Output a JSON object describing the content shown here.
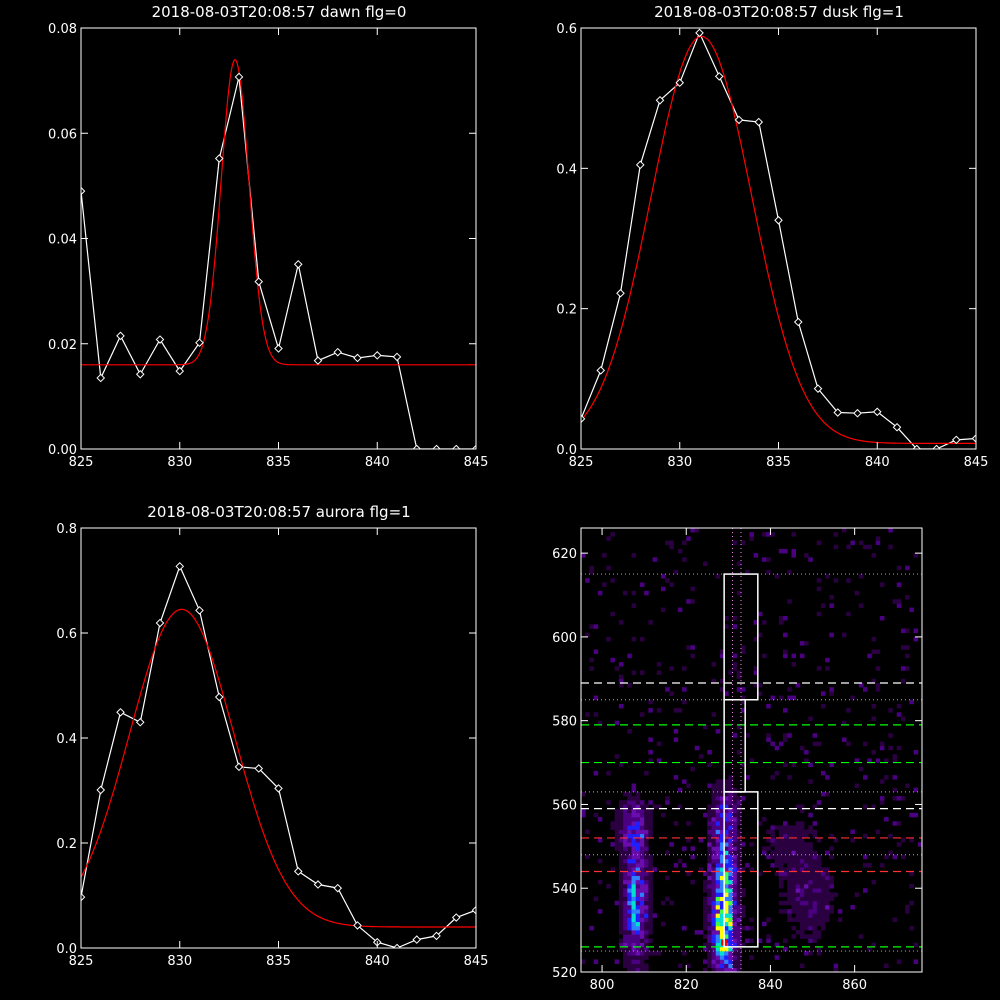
{
  "chart_data": [
    {
      "type": "line",
      "title": "2018-08-03T20:08:57 dawn flg=0",
      "xlim": [
        825,
        845
      ],
      "ylim": [
        0,
        0.08
      ],
      "xticks": [
        825,
        830,
        835,
        840,
        845
      ],
      "xtick_labels": [
        "825",
        "830",
        "835",
        "840",
        "845"
      ],
      "yticks": [
        0,
        0.02,
        0.04,
        0.06,
        0.08
      ],
      "ytick_labels": [
        "0.00",
        "0.02",
        "0.04",
        "0.06",
        "0.08"
      ],
      "data_color": "#ffffff",
      "fit_color": "#ff0000",
      "x": [
        825,
        826,
        827,
        828,
        829,
        830,
        831,
        832,
        833,
        834,
        835,
        836,
        837,
        838,
        839,
        840,
        841,
        842,
        843,
        844,
        845
      ],
      "y": [
        0.049,
        0.0135,
        0.0215,
        0.0142,
        0.0208,
        0.0148,
        0.0202,
        0.0552,
        0.0707,
        0.0318,
        0.0191,
        0.0351,
        0.0168,
        0.0184,
        0.0173,
        0.0178,
        0.0175,
        0,
        0,
        0,
        0
      ],
      "fit": {
        "center": 832.8,
        "sigma": 0.7,
        "amplitude": 0.058,
        "baseline": 0.016
      }
    },
    {
      "type": "line",
      "title": "2018-08-03T20:08:57 dusk flg=1",
      "xlim": [
        825,
        845
      ],
      "ylim": [
        0,
        0.6
      ],
      "xticks": [
        825,
        830,
        835,
        840,
        845
      ],
      "xtick_labels": [
        "825",
        "830",
        "835",
        "840",
        "845"
      ],
      "yticks": [
        0,
        0.2,
        0.4,
        0.6
      ],
      "ytick_labels": [
        "0.0",
        "0.2",
        "0.4",
        "0.6"
      ],
      "data_color": "#ffffff",
      "fit_color": "#ff0000",
      "x": [
        825,
        826,
        827,
        828,
        829,
        830,
        831,
        832,
        833,
        834,
        835,
        836,
        837,
        838,
        839,
        840,
        841,
        842,
        843,
        844,
        845
      ],
      "y": [
        0.043,
        0.112,
        0.222,
        0.405,
        0.497,
        0.522,
        0.593,
        0.531,
        0.469,
        0.466,
        0.326,
        0.181,
        0.086,
        0.052,
        0.051,
        0.053,
        0.031,
        0.0,
        0.0,
        0.013,
        0.015
      ],
      "fit": {
        "center": 831.1,
        "sigma": 2.55,
        "amplitude": 0.58,
        "baseline": 0.008
      }
    },
    {
      "type": "line",
      "title": "2018-08-03T20:08:57 aurora flg=1",
      "xlim": [
        825,
        845
      ],
      "ylim": [
        0,
        0.8
      ],
      "xticks": [
        825,
        830,
        835,
        840,
        845
      ],
      "xtick_labels": [
        "825",
        "830",
        "835",
        "840",
        "845"
      ],
      "yticks": [
        0,
        0.2,
        0.4,
        0.6,
        0.8
      ],
      "ytick_labels": [
        "0.0",
        "0.2",
        "0.4",
        "0.6",
        "0.8"
      ],
      "data_color": "#ffffff",
      "fit_color": "#ff0000",
      "x": [
        825,
        826,
        827,
        828,
        829,
        830,
        831,
        832,
        833,
        834,
        835,
        836,
        837,
        838,
        839,
        840,
        841,
        842,
        843,
        844,
        845
      ],
      "y": [
        0.097,
        0.301,
        0.449,
        0.43,
        0.619,
        0.727,
        0.643,
        0.478,
        0.345,
        0.342,
        0.304,
        0.146,
        0.121,
        0.114,
        0.043,
        0.011,
        0.0,
        0.016,
        0.023,
        0.058,
        0.072
      ],
      "fit": {
        "center": 830.1,
        "sigma": 2.65,
        "amplitude": 0.605,
        "baseline": 0.04
      }
    },
    {
      "type": "heatmap",
      "title": "",
      "xlim": [
        795,
        876
      ],
      "ylim": [
        520,
        626
      ],
      "xticks": [
        800,
        820,
        840,
        860
      ],
      "xtick_labels": [
        "800",
        "820",
        "840",
        "860"
      ],
      "yticks": [
        520,
        540,
        560,
        580,
        600,
        620
      ],
      "ytick_labels": [
        "520",
        "540",
        "560",
        "580",
        "600",
        "620"
      ],
      "colormap": [
        "#000000",
        "#2a0040",
        "#4b0082",
        "#6a0dad",
        "#1f1fff",
        "#2f7fff",
        "#00e0d0",
        "#40ff40",
        "#ffff00",
        "#ff0000"
      ],
      "sources": [
        {
          "x": 808,
          "y": 537,
          "sx": 2.0,
          "sy": 10,
          "amp": 0.55
        },
        {
          "x": 807,
          "y": 555,
          "sx": 2.5,
          "sy": 4,
          "amp": 0.3
        },
        {
          "x": 829,
          "y": 530,
          "sx": 2.0,
          "sy": 7,
          "amp": 0.9
        },
        {
          "x": 829,
          "y": 546,
          "sx": 2.0,
          "sy": 8,
          "amp": 0.5
        },
        {
          "x": 829,
          "y": 559,
          "sx": 2.0,
          "sy": 4,
          "amp": 0.25
        },
        {
          "x": 849,
          "y": 537,
          "sx": 4.0,
          "sy": 6,
          "amp": 0.18
        },
        {
          "x": 845,
          "y": 550,
          "sx": 5.0,
          "sy": 5,
          "amp": 0.12
        }
      ],
      "peak": {
        "x": 829,
        "y": 527
      },
      "boxes": [
        {
          "x0": 829,
          "x1": 837,
          "y0": 585,
          "y1": 615
        },
        {
          "x0": 829,
          "x1": 834,
          "y0": 563,
          "y1": 585
        },
        {
          "x0": 829,
          "x1": 837,
          "y0": 526,
          "y1": 563
        }
      ],
      "vertical_dotted": [
        831,
        833
      ],
      "hlines": [
        {
          "y": 615,
          "style": "dotted",
          "color": "#ff40ff"
        },
        {
          "y": 589,
          "style": "dashed",
          "color": "#ffffff"
        },
        {
          "y": 585,
          "style": "dotted",
          "color": "#ff40ff"
        },
        {
          "y": 579,
          "style": "dashed",
          "color": "#00ff00"
        },
        {
          "y": 570,
          "style": "dashed",
          "color": "#00ff00"
        },
        {
          "y": 563,
          "style": "dotted",
          "color": "#ff40ff"
        },
        {
          "y": 559,
          "style": "dashed",
          "color": "#ffffff"
        },
        {
          "y": 552,
          "style": "dashed",
          "color": "#ff3030"
        },
        {
          "y": 548,
          "style": "dotted",
          "color": "#ff40ff"
        },
        {
          "y": 544,
          "style": "dashed",
          "color": "#ff3030"
        },
        {
          "y": 526,
          "style": "dashed",
          "color": "#00ff00"
        },
        {
          "y": 525,
          "style": "dotted",
          "color": "#ff40ff"
        }
      ]
    }
  ]
}
